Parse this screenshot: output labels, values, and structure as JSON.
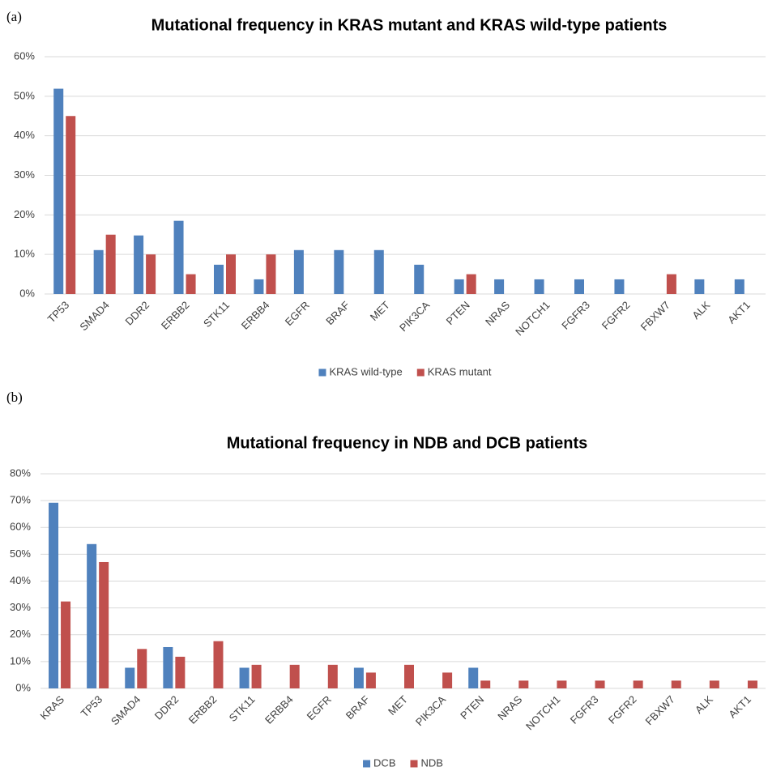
{
  "chart_data": [
    {
      "type": "bar",
      "panel_label": "(a)",
      "title": "Mutational frequency in KRAS mutant and KRAS wild-type patients",
      "categories": [
        "TP53",
        "SMAD4",
        "DDR2",
        "ERBB2",
        "STK11",
        "ERBB4",
        "EGFR",
        "BRAF",
        "MET",
        "PIK3CA",
        "PTEN",
        "NRAS",
        "NOTCH1",
        "FGFR3",
        "FGFR2",
        "FBXW7",
        "ALK",
        "AKT1"
      ],
      "series": [
        {
          "name": "KRAS wild-type",
          "color": "#4f81bd",
          "values": [
            51.9,
            11.1,
            14.8,
            18.5,
            7.4,
            3.7,
            11.1,
            11.1,
            11.1,
            7.4,
            3.7,
            3.7,
            3.7,
            3.7,
            3.7,
            0,
            3.7,
            3.7
          ]
        },
        {
          "name": "KRAS mutant",
          "color": "#c0504d",
          "values": [
            45,
            15,
            10,
            5,
            10,
            10,
            0,
            0,
            0,
            0,
            5,
            0,
            0,
            0,
            0,
            5,
            0,
            0
          ]
        }
      ],
      "ylim": [
        0,
        60
      ],
      "yticks": [
        {
          "value": 0,
          "label": "0%"
        },
        {
          "value": 10,
          "label": "10%"
        },
        {
          "value": 20,
          "label": "20%"
        },
        {
          "value": 30,
          "label": "30%"
        },
        {
          "value": 40,
          "label": "40%"
        },
        {
          "value": 50,
          "label": "50%"
        },
        {
          "value": 60,
          "label": "60%"
        }
      ],
      "grid": true,
      "legend": "bottom"
    },
    {
      "type": "bar",
      "panel_label": "(b)",
      "title": "Mutational frequency in NDB and DCB patients",
      "categories": [
        "KRAS",
        "TP53",
        "SMAD4",
        "DDR2",
        "ERBB2",
        "STK11",
        "ERBB4",
        "EGFR",
        "BRAF",
        "MET",
        "PIK3CA",
        "PTEN",
        "NRAS",
        "NOTCH1",
        "FGFR3",
        "FGFR2",
        "FBXW7",
        "ALK",
        "AKT1"
      ],
      "series": [
        {
          "name": "DCB",
          "color": "#4f81bd",
          "values": [
            69.2,
            53.8,
            7.7,
            15.4,
            0,
            7.7,
            0,
            0,
            7.7,
            0,
            0,
            7.7,
            0,
            0,
            0,
            0,
            0,
            0,
            0
          ]
        },
        {
          "name": "NDB",
          "color": "#c0504d",
          "values": [
            32.4,
            47.1,
            14.7,
            11.8,
            17.6,
            8.8,
            8.8,
            8.8,
            5.9,
            8.8,
            5.9,
            2.9,
            2.9,
            2.9,
            2.9,
            2.9,
            2.9,
            2.9,
            2.9
          ]
        }
      ],
      "ylim": [
        0,
        80
      ],
      "yticks": [
        {
          "value": 0,
          "label": "0%"
        },
        {
          "value": 10,
          "label": "10%"
        },
        {
          "value": 20,
          "label": "20%"
        },
        {
          "value": 30,
          "label": "30%"
        },
        {
          "value": 40,
          "label": "40%"
        },
        {
          "value": 50,
          "label": "50%"
        },
        {
          "value": 60,
          "label": "60%"
        },
        {
          "value": 70,
          "label": "70%"
        },
        {
          "value": 80,
          "label": "80%"
        }
      ],
      "grid": true,
      "legend": "bottom"
    }
  ]
}
